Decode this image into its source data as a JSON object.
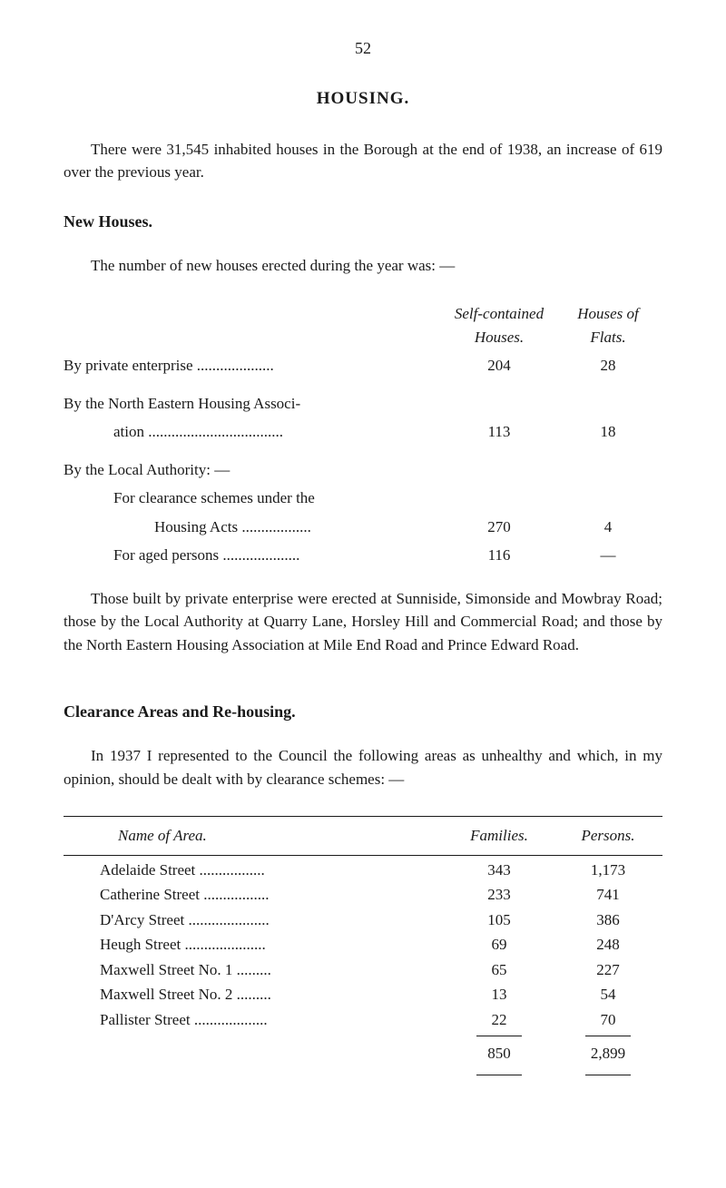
{
  "page_number": "52",
  "main_title": "HOUSING.",
  "intro_paragraph": "There were 31,545 inhabited houses in the Borough at the end of 1938, an increase of 619 over the previous year.",
  "new_houses": {
    "heading": "New Houses.",
    "lead": "The number of new houses erected during the year was: —",
    "col1_header_line1": "Self-contained",
    "col1_header_line2": "Houses.",
    "col2_header_line1": "Houses of",
    "col2_header_line2": "Flats.",
    "rows": [
      {
        "label": "By private enterprise ....................",
        "col1": "204",
        "col2": "28"
      },
      {
        "label": "By the North Eastern Housing Associ-",
        "col1": "",
        "col2": ""
      },
      {
        "label_sub": "ation ...................................",
        "col1": "113",
        "col2": "18"
      },
      {
        "label": "By the Local Authority: —",
        "col1": "",
        "col2": ""
      },
      {
        "label_sub": "For clearance schemes under the",
        "col1": "",
        "col2": ""
      },
      {
        "label_subsub": "Housing Acts ..................",
        "col1": "270",
        "col2": "4"
      },
      {
        "label_sub": "For aged persons ....................",
        "col1": "116",
        "col2": "—"
      }
    ],
    "closing_paragraph": "Those built by private enterprise were erected at Sunniside, Simonside and Mowbray Road; those by the Local Authority at Quarry Lane, Horsley Hill and Commercial Road; and those by the North Eastern Housing Association at Mile End Road and Prince Edward Road."
  },
  "clearance": {
    "heading": "Clearance Areas and Re-housing.",
    "lead": "In 1937 I represented to the Council the following areas as unhealthy and which, in my opinion, should be dealt with by clearance schemes: —",
    "header_name": "Name of Area.",
    "header_families": "Families.",
    "header_persons": "Persons.",
    "rows": [
      {
        "name": "Adelaide Street .................",
        "families": "343",
        "persons": "1,173"
      },
      {
        "name": "Catherine Street .................",
        "families": "233",
        "persons": "741"
      },
      {
        "name": "D'Arcy Street .....................",
        "families": "105",
        "persons": "386"
      },
      {
        "name": "Heugh Street .....................",
        "families": "69",
        "persons": "248"
      },
      {
        "name": "Maxwell Street No. 1 .........",
        "families": "65",
        "persons": "227"
      },
      {
        "name": "Maxwell Street No. 2 .........",
        "families": "13",
        "persons": "54"
      },
      {
        "name": "Pallister Street ...................",
        "families": "22",
        "persons": "70"
      }
    ],
    "total_families": "850",
    "total_persons": "2,899"
  }
}
